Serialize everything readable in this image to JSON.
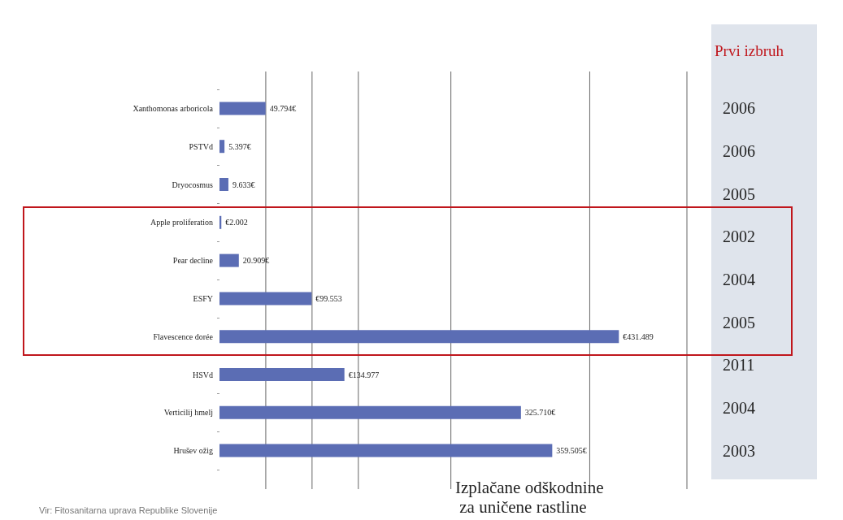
{
  "chart_data": {
    "type": "bar",
    "orientation": "horizontal",
    "title": "Izplačane odškodnine za uničene rastline",
    "categories": [
      "Xanthomonas arboricola",
      "PSTVd",
      "Dryocosmus",
      "Apple proliferation",
      "Pear decline",
      "ESFY",
      "Flavescence dorée",
      "HSVd",
      "Verticilij hmelj",
      "Hrušev ožig"
    ],
    "values": [
      49794,
      5397,
      9633,
      2002,
      20909,
      99553,
      431489,
      134977,
      325710,
      359505
    ],
    "value_labels": [
      "49.794€",
      "5.397€",
      "9.633€",
      "€2.002",
      "20.909€",
      "€99.553",
      "€431.489",
      "€134.977",
      "325.710€",
      "359.505€"
    ],
    "color": "#5b6db4",
    "xlim": [
      0,
      505000
    ],
    "xticks": [
      {
        "value": 50000,
        "label": null
      },
      {
        "value": 100000,
        "label": null
      },
      {
        "value": 150000,
        "label": null
      },
      {
        "value": 250000,
        "label": null
      },
      {
        "value": 400000,
        "label": null
      },
      {
        "value": 505000,
        "label": null
      }
    ],
    "grid": "x",
    "annotations": [
      "Prvi izbruh",
      "2006",
      "2006",
      "2005",
      "2002",
      "2004",
      "2005",
      "2011",
      "2004",
      "2003",
      "Vir: Fitosanitarna uprava Republike Slovenije"
    ]
  }
}
